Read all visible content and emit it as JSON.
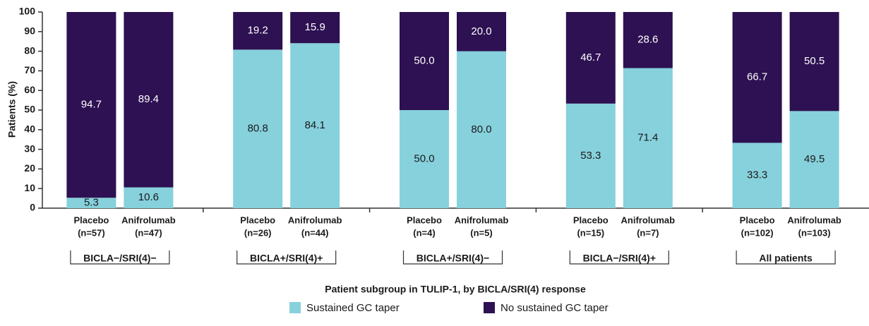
{
  "chart_data": {
    "type": "stacked_bar",
    "y_label": "Patients (%)",
    "x_label": "Patient subgroup in TULIP-1, by BICLA/SRI(4) response",
    "categories": [
      [
        "Placebo",
        "(n=57)"
      ],
      [
        "Anifrolumab",
        "(n=47)"
      ],
      [
        "Placebo",
        "(n=26)"
      ],
      [
        "Anifrolumab",
        "(n=44)"
      ],
      [
        "Placebo",
        "(n=4)"
      ],
      [
        "Anifrolumab",
        "(n=5)"
      ],
      [
        "Placebo",
        "(n=15)"
      ],
      [
        "Anifrolumab",
        "(n=7)"
      ],
      [
        "Placebo",
        "(n=102)"
      ],
      [
        "Anifrolumab",
        "(n=103)"
      ]
    ],
    "groups": [
      "BICLA−/SRI(4)−",
      "BICLA+/SRI(4)+",
      "BICLA+/SRI(4)−",
      "BICLA−/SRI(4)+",
      "All patients"
    ],
    "series": [
      {
        "name": "Sustained GC taper",
        "color": "#86d1dc",
        "values": [
          5.3,
          10.6,
          80.8,
          84.1,
          50.0,
          80.0,
          53.3,
          71.4,
          33.3,
          49.5
        ],
        "value_labels": [
          "5.3",
          "10.6",
          "80.8",
          "84.1",
          "50.0",
          "80.0",
          "53.3",
          "71.4",
          "33.3",
          "49.5"
        ]
      },
      {
        "name": "No sustained GC taper",
        "color": "#2d1152",
        "values": [
          94.7,
          89.4,
          19.2,
          15.9,
          50.0,
          20.0,
          46.7,
          28.6,
          66.7,
          50.5
        ],
        "value_labels": [
          "94.7",
          "89.4",
          "19.2",
          "15.9",
          "50.0",
          "20.0",
          "46.7",
          "28.6",
          "66.7",
          "50.5"
        ]
      }
    ],
    "ylim": [
      0,
      100
    ],
    "yticks": [
      0,
      10,
      20,
      30,
      40,
      50,
      60,
      70,
      80,
      90,
      100
    ],
    "grid": false
  }
}
